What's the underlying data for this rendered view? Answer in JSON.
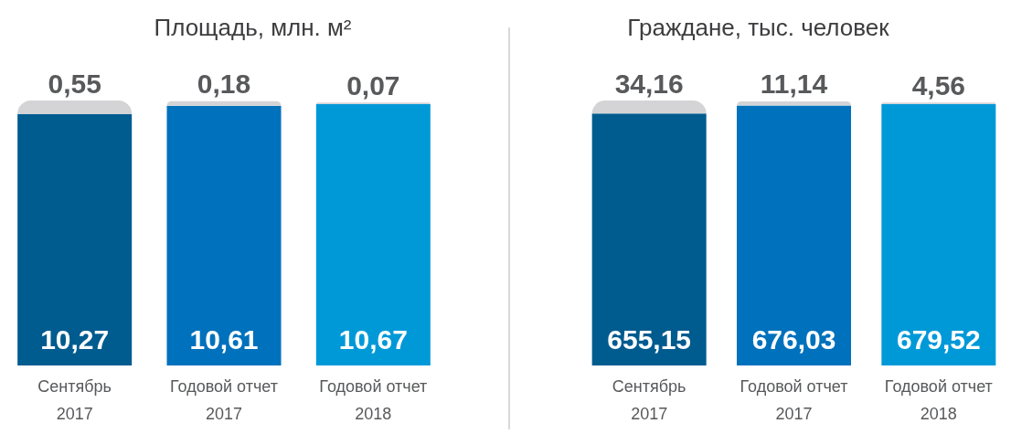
{
  "chart_data": [
    {
      "type": "bar",
      "title": "Площадь, млн. м²",
      "stacked": true,
      "categories": [
        "Сентябрь 2017",
        "Годовой отчет 2017",
        "Годовой отчет 2018"
      ],
      "series": [
        {
          "colors": [
            "#005b8f",
            "#0071bc",
            "#0099d8"
          ],
          "values": [
            10.27,
            10.61,
            10.67
          ],
          "value_labels": [
            "10,27",
            "10,61",
            "10,67"
          ]
        },
        {
          "color": "#d4d4d6",
          "values": [
            0.55,
            0.18,
            0.07
          ],
          "value_labels": [
            "0,55",
            "0,18",
            "0,07"
          ]
        }
      ]
    },
    {
      "type": "bar",
      "title": "Граждане, тыс. человек",
      "stacked": true,
      "categories": [
        "Сентябрь 2017",
        "Годовой отчет 2017",
        "Годовой отчет 2018"
      ],
      "series": [
        {
          "colors": [
            "#005b8f",
            "#0071bc",
            "#0099d8"
          ],
          "values": [
            655.15,
            676.03,
            679.52
          ],
          "value_labels": [
            "655,15",
            "676,03",
            "679,52"
          ]
        },
        {
          "color": "#d4d4d6",
          "values": [
            34.16,
            11.14,
            4.56
          ],
          "value_labels": [
            "34,16",
            "11,14",
            "4,56"
          ]
        }
      ]
    }
  ]
}
